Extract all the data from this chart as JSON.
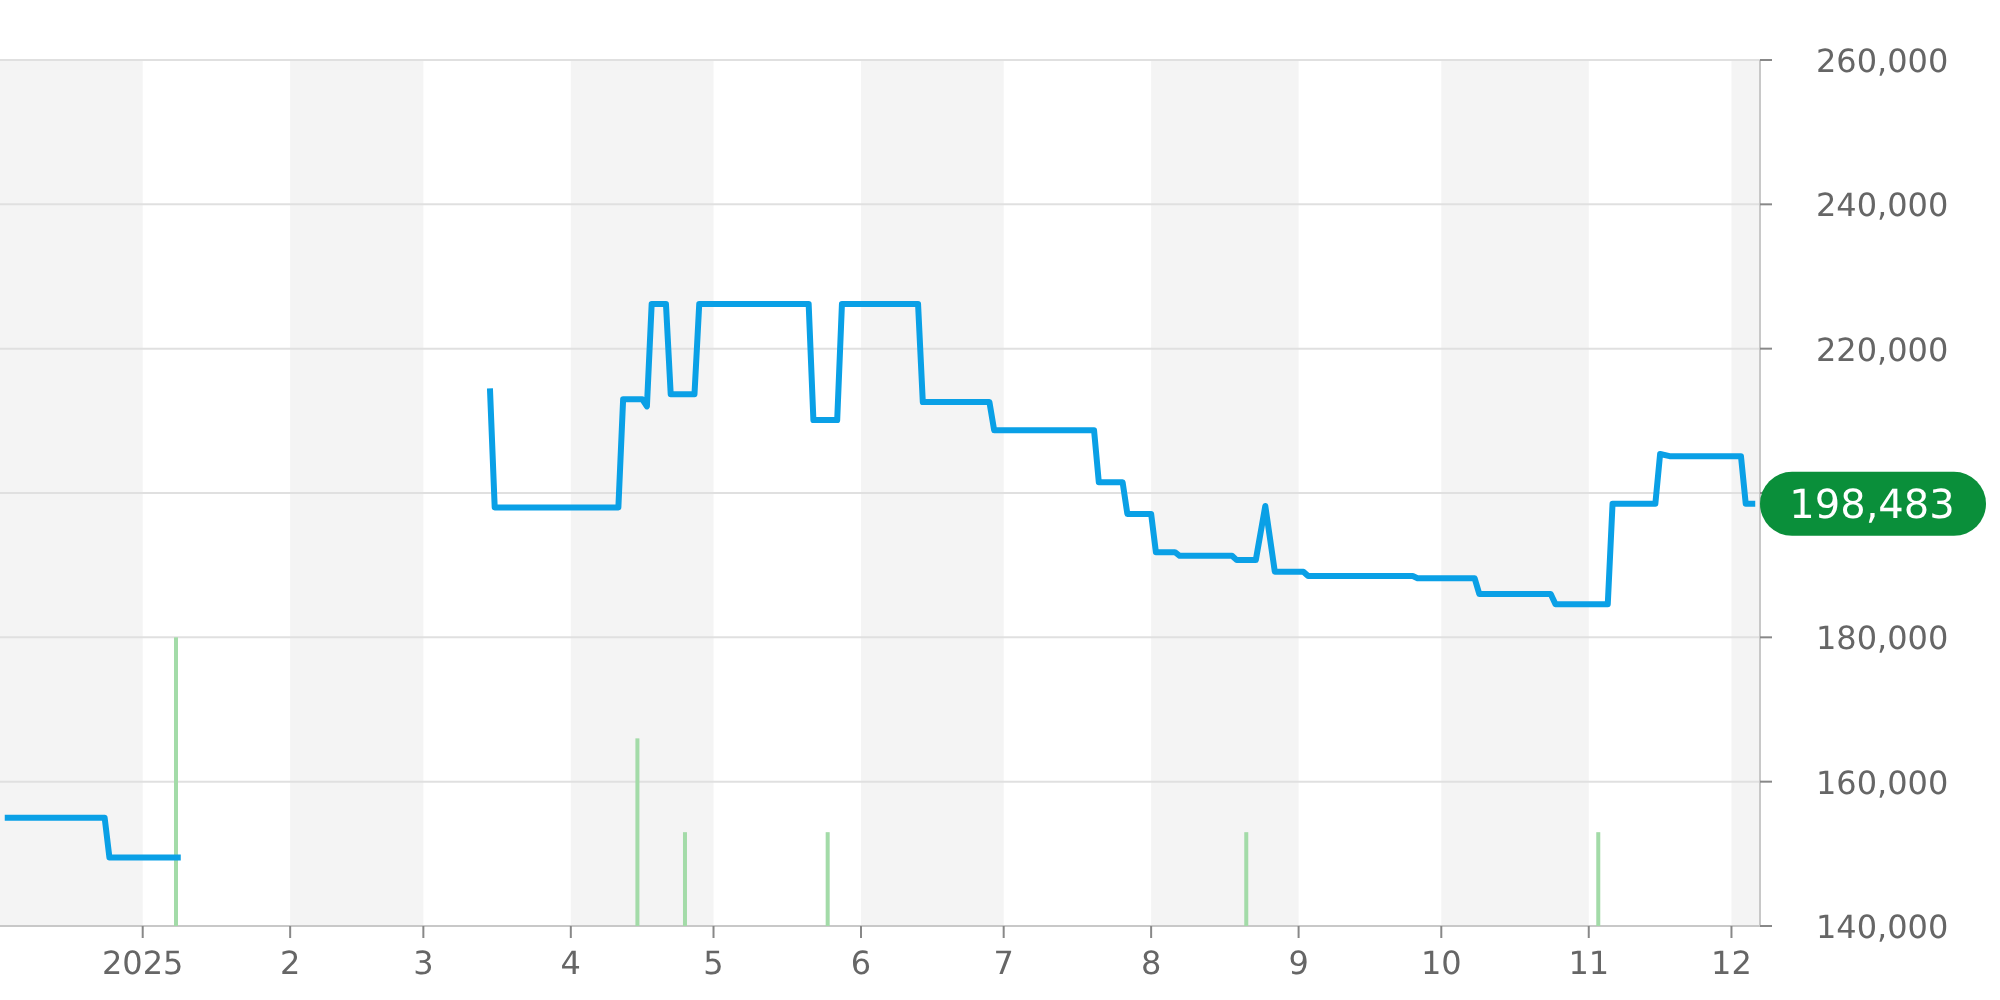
{
  "chart_data": {
    "type": "line",
    "xlim": [
      "2024-12-02",
      "2025-12-07"
    ],
    "xticks": [
      {
        "value": "2025-01-01",
        "label": "2025"
      },
      {
        "value": "2025-02-01",
        "label": "2"
      },
      {
        "value": "2025-03-01",
        "label": "3"
      },
      {
        "value": "2025-04-01",
        "label": "4"
      },
      {
        "value": "2025-05-01",
        "label": "5"
      },
      {
        "value": "2025-06-01",
        "label": "6"
      },
      {
        "value": "2025-07-01",
        "label": "7"
      },
      {
        "value": "2025-08-01",
        "label": "8"
      },
      {
        "value": "2025-09-01",
        "label": "9"
      },
      {
        "value": "2025-10-01",
        "label": "10"
      },
      {
        "value": "2025-11-01",
        "label": "11"
      },
      {
        "value": "2025-12-01",
        "label": "12"
      }
    ],
    "ylim": [
      140000,
      260000
    ],
    "yticks": [
      {
        "value": 140000,
        "label": "140,000"
      },
      {
        "value": 160000,
        "label": "160,000"
      },
      {
        "value": 180000,
        "label": "180,000"
      },
      {
        "value": 200000,
        "label": null
      },
      {
        "value": 220000,
        "label": "220,000"
      },
      {
        "value": 240000,
        "label": "240,000"
      },
      {
        "value": 260000,
        "label": "260,000"
      }
    ],
    "grid": "y",
    "series": [
      {
        "type": "bar",
        "color": "#a3dba8",
        "x": [
          "2025-01-08",
          "2025-04-15",
          "2025-04-25",
          "2025-05-25",
          "2025-08-21",
          "2025-11-03"
        ],
        "values": [
          180000,
          166000,
          153000,
          153000,
          153000,
          153000
        ]
      },
      {
        "color": "#0aa0e6",
        "x": [
          "2024-12-03",
          "2024-12-24",
          "2024-12-25",
          "2025-01-09",
          "2025-02-10",
          "2025-03-15",
          "2025-03-16",
          "2025-04-11",
          "2025-04-12",
          "2025-04-16",
          "2025-04-17",
          "2025-04-18",
          "2025-04-21",
          "2025-04-22",
          "2025-04-27",
          "2025-04-28",
          "2025-05-21",
          "2025-05-22",
          "2025-05-27",
          "2025-05-28",
          "2025-06-13",
          "2025-06-14",
          "2025-06-28",
          "2025-06-29",
          "2025-07-20",
          "2025-07-21",
          "2025-07-26",
          "2025-07-27",
          "2025-08-01",
          "2025-08-02",
          "2025-08-06",
          "2025-08-07",
          "2025-08-18",
          "2025-08-19",
          "2025-08-23",
          "2025-08-25",
          "2025-08-27",
          "2025-09-02",
          "2025-09-03",
          "2025-09-25",
          "2025-09-26",
          "2025-10-08",
          "2025-10-09",
          "2025-10-24",
          "2025-10-25",
          "2025-11-05",
          "2025-11-06",
          "2025-11-15",
          "2025-11-16",
          "2025-11-18",
          "2025-12-03",
          "2025-12-04",
          "2025-12-06"
        ],
        "values": [
          155000,
          155000,
          149500,
          149500,
          null,
          214500,
          198000,
          198000,
          213000,
          213000,
          212000,
          226200,
          226200,
          213700,
          213700,
          226200,
          226200,
          210100,
          210100,
          226200,
          226200,
          212600,
          212600,
          208700,
          208700,
          201500,
          201500,
          197100,
          197100,
          191800,
          191800,
          191300,
          191300,
          190700,
          190700,
          198200,
          189100,
          189100,
          188500,
          188500,
          188200,
          188200,
          186000,
          186000,
          184600,
          184600,
          198500,
          198500,
          205400,
          205100,
          205100,
          198500,
          198500
        ]
      }
    ],
    "bands": [
      {
        "axis": "x",
        "from": "2024-12-02",
        "to": "2025-01-01",
        "color": "#f4f4f4"
      },
      {
        "axis": "x",
        "from": "2025-02-01",
        "to": "2025-03-01",
        "color": "#f4f4f4"
      },
      {
        "axis": "x",
        "from": "2025-04-01",
        "to": "2025-05-01",
        "color": "#f4f4f4"
      },
      {
        "axis": "x",
        "from": "2025-06-01",
        "to": "2025-07-01",
        "color": "#f4f4f4"
      },
      {
        "axis": "x",
        "from": "2025-08-01",
        "to": "2025-09-01",
        "color": "#f4f4f4"
      },
      {
        "axis": "x",
        "from": "2025-10-01",
        "to": "2025-11-01",
        "color": "#f4f4f4"
      },
      {
        "axis": "x",
        "from": "2025-12-01",
        "to": "2025-12-07",
        "color": "#f4f4f4"
      }
    ],
    "annotations": [
      "198,483"
    ]
  }
}
